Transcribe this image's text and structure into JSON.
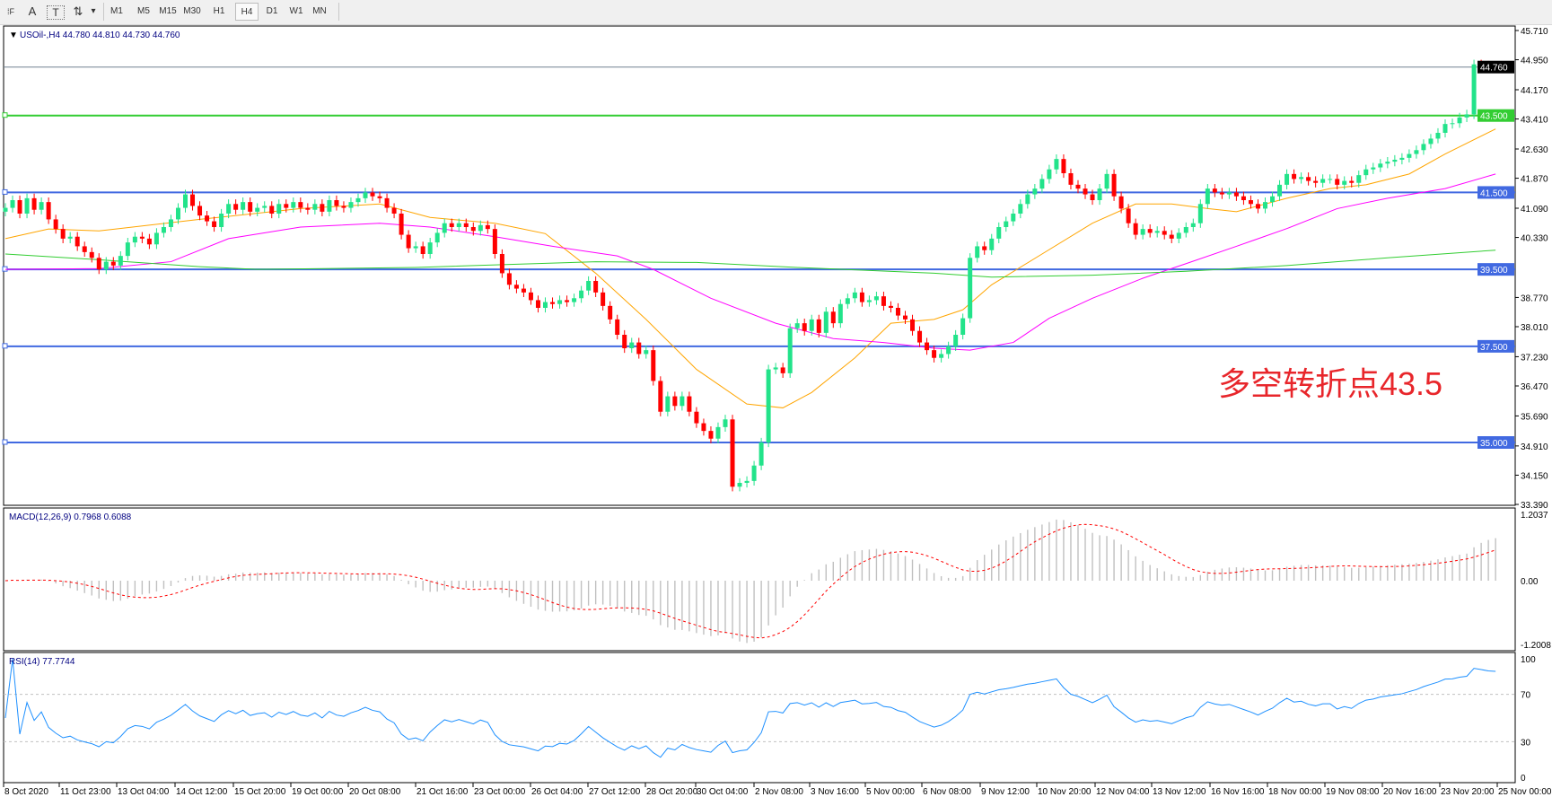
{
  "toolbar": {
    "tools": [
      {
        "name": "grid-icon",
        "glyph": "⁞F"
      },
      {
        "name": "text-icon",
        "glyph": "A"
      },
      {
        "name": "text-label-icon",
        "glyph": "T"
      },
      {
        "name": "arrows-icon",
        "glyph": "⇅"
      },
      {
        "name": "dropdown-icon",
        "glyph": "▾"
      }
    ],
    "timeframes": [
      "M1",
      "M5",
      "M15",
      "M30",
      "H1",
      "H4",
      "D1",
      "W1",
      "MN"
    ],
    "active_timeframe": "H4"
  },
  "chart_data": {
    "type": "candlestick",
    "symbol_header": "USOil-,H4  44.780 44.810 44.730 44.760",
    "header_arrow": "▼",
    "colors": {
      "bull": "#22e38a",
      "bear": "#ff0000",
      "ma_fast": "#ffa500",
      "ma_mid": "#ff00ff",
      "ma_slow": "#32cd32",
      "macd_hist": "#c0c0c0",
      "macd_signal": "#ff0000",
      "rsi": "#1e90ff",
      "support": "#4169e1",
      "pivot": "#32cd32"
    },
    "ylim": [
      33.39,
      45.71
    ],
    "price_ticks": [
      "45.710",
      "44.950",
      "44.170",
      "43.410",
      "42.630",
      "41.870",
      "41.090",
      "40.330",
      "38.770",
      "38.010",
      "37.230",
      "36.470",
      "35.690",
      "34.910",
      "34.150",
      "33.390"
    ],
    "closes": [
      41.1,
      41.3,
      40.95,
      41.35,
      41.05,
      41.25,
      40.8,
      40.55,
      40.3,
      40.35,
      40.1,
      39.95,
      39.8,
      39.5,
      39.7,
      39.6,
      39.85,
      40.2,
      40.35,
      40.3,
      40.15,
      40.45,
      40.6,
      40.8,
      41.1,
      41.45,
      41.15,
      40.9,
      40.75,
      40.6,
      40.95,
      41.2,
      41.05,
      41.25,
      41.0,
      41.1,
      41.15,
      40.95,
      41.2,
      41.1,
      41.25,
      41.1,
      41.05,
      41.2,
      41.0,
      41.3,
      41.15,
      41.1,
      41.25,
      41.35,
      41.5,
      41.4,
      41.35,
      41.1,
      40.95,
      40.4,
      40.05,
      40.1,
      39.9,
      40.2,
      40.45,
      40.7,
      40.6,
      40.7,
      40.6,
      40.5,
      40.65,
      40.55,
      39.9,
      39.4,
      39.1,
      39.0,
      38.9,
      38.7,
      38.5,
      38.65,
      38.6,
      38.7,
      38.65,
      38.75,
      38.95,
      39.2,
      38.9,
      38.55,
      38.2,
      37.8,
      37.45,
      37.6,
      37.3,
      37.4,
      36.6,
      35.8,
      36.2,
      35.95,
      36.2,
      35.8,
      35.5,
      35.3,
      35.1,
      35.4,
      35.6,
      33.85,
      33.95,
      34.0,
      34.4,
      35.0,
      36.9,
      36.95,
      36.8,
      37.97,
      38.1,
      37.9,
      38.2,
      37.85,
      38.4,
      38.1,
      38.6,
      38.75,
      38.9,
      38.65,
      38.7,
      38.8,
      38.55,
      38.5,
      38.3,
      38.2,
      37.9,
      37.6,
      37.4,
      37.2,
      37.3,
      37.5,
      37.8,
      38.23,
      39.8,
      40.1,
      40.0,
      40.3,
      40.6,
      40.75,
      40.95,
      41.2,
      41.45,
      41.6,
      41.85,
      42.1,
      42.37,
      42.0,
      41.7,
      41.6,
      41.45,
      41.3,
      41.6,
      41.98,
      41.4,
      41.08,
      40.7,
      40.4,
      40.55,
      40.45,
      40.5,
      40.4,
      40.3,
      40.45,
      40.6,
      40.7,
      41.2,
      41.6,
      41.5,
      41.45,
      41.5,
      41.4,
      41.3,
      41.2,
      41.08,
      41.25,
      41.4,
      41.7,
      41.98,
      41.85,
      41.9,
      41.8,
      41.75,
      41.85,
      41.85,
      41.7,
      41.8,
      41.75,
      41.95,
      42.1,
      42.15,
      42.25,
      42.3,
      42.35,
      42.4,
      42.5,
      42.6,
      42.76,
      42.9,
      43.05,
      43.28,
      43.3,
      43.45,
      43.53,
      44.83,
      44.8,
      44.77,
      44.76
    ],
    "moving_averages": [
      {
        "color_key": "ma_fast",
        "points": [
          [
            0,
            40.3
          ],
          [
            6,
            40.55
          ],
          [
            13,
            40.5
          ],
          [
            27,
            40.8
          ],
          [
            41,
            41.08
          ],
          [
            52,
            41.2
          ],
          [
            59,
            40.85
          ],
          [
            68,
            40.7
          ],
          [
            75,
            40.43
          ],
          [
            82,
            39.4
          ],
          [
            89,
            38.2
          ],
          [
            96,
            36.9
          ],
          [
            103,
            36.0
          ],
          [
            108,
            35.9
          ],
          [
            112,
            36.3
          ],
          [
            118,
            37.2
          ],
          [
            123,
            38.1
          ],
          [
            129,
            38.2
          ],
          [
            133,
            38.45
          ],
          [
            137,
            39.1
          ],
          [
            144,
            39.9
          ],
          [
            151,
            40.7
          ],
          [
            157,
            41.2
          ],
          [
            162,
            41.2
          ],
          [
            167,
            41.08
          ],
          [
            171,
            41.0
          ],
          [
            178,
            41.35
          ],
          [
            184,
            41.6
          ],
          [
            189,
            41.7
          ],
          [
            195,
            41.98
          ],
          [
            200,
            42.5
          ],
          [
            207,
            43.15
          ]
        ]
      },
      {
        "color_key": "ma_mid",
        "points": [
          [
            0,
            39.5
          ],
          [
            13,
            39.52
          ],
          [
            23,
            39.7
          ],
          [
            31,
            40.3
          ],
          [
            41,
            40.6
          ],
          [
            52,
            40.7
          ],
          [
            59,
            40.6
          ],
          [
            68,
            40.35
          ],
          [
            76,
            40.1
          ],
          [
            85,
            39.85
          ],
          [
            90,
            39.5
          ],
          [
            98,
            38.75
          ],
          [
            107,
            38.1
          ],
          [
            115,
            37.7
          ],
          [
            122,
            37.6
          ],
          [
            129,
            37.45
          ],
          [
            134,
            37.4
          ],
          [
            140,
            37.6
          ],
          [
            145,
            38.23
          ],
          [
            151,
            38.75
          ],
          [
            158,
            39.27
          ],
          [
            164,
            39.65
          ],
          [
            171,
            40.1
          ],
          [
            178,
            40.56
          ],
          [
            185,
            41.08
          ],
          [
            192,
            41.35
          ],
          [
            200,
            41.6
          ],
          [
            207,
            41.98
          ]
        ]
      },
      {
        "color_key": "ma_slow",
        "points": [
          [
            0,
            39.9
          ],
          [
            13,
            39.75
          ],
          [
            27,
            39.57
          ],
          [
            35,
            39.5
          ],
          [
            57,
            39.55
          ],
          [
            82,
            39.7
          ],
          [
            96,
            39.68
          ],
          [
            110,
            39.55
          ],
          [
            129,
            39.4
          ],
          [
            137,
            39.3
          ],
          [
            151,
            39.35
          ],
          [
            164,
            39.45
          ],
          [
            178,
            39.6
          ],
          [
            192,
            39.8
          ],
          [
            207,
            40.0
          ]
        ]
      }
    ],
    "horizontal_lines": [
      {
        "price": 44.76,
        "label": "44.760",
        "kind": "current"
      },
      {
        "price": 43.5,
        "label": "43.500",
        "kind": "pivot"
      },
      {
        "price": 41.5,
        "label": "41.500",
        "kind": "support"
      },
      {
        "price": 39.5,
        "label": "39.500",
        "kind": "support"
      },
      {
        "price": 37.5,
        "label": "37.500",
        "kind": "support"
      },
      {
        "price": 35.0,
        "label": "35.000",
        "kind": "support"
      }
    ],
    "annotation": "多空转折点43.5",
    "macd": {
      "label": "MACD(12,26,9) 0.7968 0.6088",
      "ticks": [
        "1.2037",
        "0.00",
        "-1.2008"
      ],
      "ylim": [
        -1.2008,
        1.2037
      ]
    },
    "rsi": {
      "label": "RSI(14) 77.7744",
      "ticks": [
        "100",
        "70",
        "30",
        "0"
      ],
      "levels": [
        70,
        30
      ]
    },
    "x_tick_labels": [
      "8 Oct 2020",
      "11 Oct 23:00",
      "13 Oct 04:00",
      "14 Oct 12:00",
      "15 Oct 20:00",
      "19 Oct 00:00",
      "20 Oct 08:00",
      "21 Oct 16:00",
      "23 Oct 00:00",
      "26 Oct 04:00",
      "27 Oct 12:00",
      "28 Oct 20:00",
      "30 Oct 04:00",
      "2 Nov 08:00",
      "3 Nov 16:00",
      "5 Nov 00:00",
      "6 Nov 08:00",
      "9 Nov 12:00",
      "10 Nov 20:00",
      "12 Nov 04:00",
      "13 Nov 12:00",
      "16 Nov 16:00",
      "18 Nov 00:00",
      "19 Nov 08:00",
      "20 Nov 16:00",
      "23 Nov 20:00",
      "25 Nov 00:00"
    ]
  }
}
